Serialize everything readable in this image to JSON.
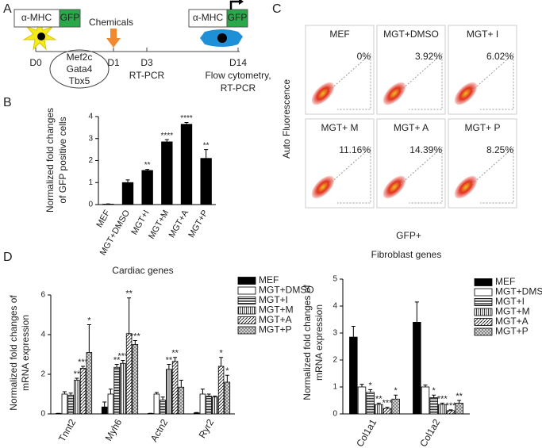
{
  "panel_a": {
    "label": "A",
    "left_promoter": "α-MHC",
    "left_reporter": "GFP",
    "treatment": "Chemicals",
    "right_promoter": "α-MHC",
    "right_reporter": "GFP",
    "days": [
      "D0",
      "D1",
      "D3",
      "D14"
    ],
    "factors": [
      "Mef2c",
      "Gata4",
      "Tbx5"
    ],
    "d3_assay": "RT-PCR",
    "d14_assay": [
      "Flow cytometry,",
      "RT-PCR"
    ]
  },
  "panel_c": {
    "label": "C",
    "y_label": "Auto Fluorescence",
    "x_label": "GFP+",
    "plots": [
      {
        "name": "MEF",
        "percent": "0%"
      },
      {
        "name": "MGT+DMSO",
        "percent": "3.92%"
      },
      {
        "name": "MGT+ I",
        "percent": "6.02%"
      },
      {
        "name": "MGT+ M",
        "percent": "11.16%"
      },
      {
        "name": "MGT+ A",
        "percent": "14.39%"
      },
      {
        "name": "MGT+ P",
        "percent": "8.25%"
      }
    ]
  },
  "chart_data": [
    {
      "type": "bar",
      "panel_label": "B",
      "y_label": [
        "Normalized fold changes",
        "of GFP positive cells"
      ],
      "categories": [
        "MEF",
        "MGT+DMSO",
        "MGT+I",
        "MGT+M",
        "MGT+A",
        "MGT+P"
      ],
      "series": [
        {
          "color": "#000000",
          "values": [
            0.02,
            1.0,
            1.55,
            2.85,
            3.65,
            2.1
          ],
          "errors": [
            0.01,
            0.12,
            0.05,
            0.1,
            0.08,
            0.4
          ],
          "annotations": [
            null,
            null,
            "**",
            "****",
            "****",
            "**"
          ]
        }
      ],
      "ylim": [
        0,
        4
      ],
      "yticks": [
        0,
        1,
        2,
        3,
        4
      ]
    },
    {
      "type": "bar",
      "panel_label": "D",
      "title": "Cardiac genes",
      "y_label": [
        "Normalized fold changes of",
        "mRNA expression"
      ],
      "categories": [
        "Tnnt2",
        "Myh6",
        "Actn2",
        "Ryr2"
      ],
      "legend": "right",
      "series": [
        {
          "name": "MEF",
          "color": "#000000",
          "values": [
            0.02,
            0.35,
            0.02,
            0.05
          ],
          "errors": [
            0.01,
            0.25,
            0.01,
            0.02
          ],
          "annotations": [
            null,
            null,
            null,
            null
          ]
        },
        {
          "name": "MGT+DMSO",
          "color": "#ffffff",
          "values": [
            1.0,
            1.0,
            1.0,
            1.0
          ],
          "errors": [
            0.12,
            0.25,
            0.08,
            0.25
          ],
          "annotations": [
            null,
            null,
            null,
            null
          ]
        },
        {
          "name": "MGT+I",
          "pattern": "hlines",
          "values": [
            0.95,
            2.35,
            0.7,
            0.9
          ],
          "errors": [
            0.1,
            0.15,
            0.15,
            0.1
          ],
          "annotations": [
            null,
            "**",
            null,
            null
          ]
        },
        {
          "name": "MGT+M",
          "pattern": "vlines",
          "values": [
            1.7,
            2.55,
            2.25,
            0.85
          ],
          "errors": [
            0.1,
            0.15,
            0.25,
            0.05
          ],
          "annotations": [
            "**",
            "***",
            "**",
            null
          ]
        },
        {
          "name": "MGT+A",
          "pattern": "diag",
          "values": [
            2.3,
            4.05,
            2.65,
            2.4
          ],
          "errors": [
            0.1,
            1.8,
            0.2,
            0.45
          ],
          "annotations": [
            "***",
            "**",
            "**",
            "*"
          ]
        },
        {
          "name": "MGT+P",
          "pattern": "cross",
          "values": [
            3.1,
            3.5,
            1.35,
            1.6
          ],
          "errors": [
            1.4,
            0.2,
            0.35,
            0.35
          ],
          "annotations": [
            "*",
            "***",
            null,
            "*"
          ]
        }
      ],
      "ylim": [
        0,
        6
      ],
      "yticks": [
        0,
        2,
        4,
        6
      ]
    },
    {
      "type": "bar",
      "title": "Fibroblast genes",
      "y_label": [
        "Normalized fold changes of",
        "mRNA expression"
      ],
      "categories": [
        "Col1a1",
        "Col1a2"
      ],
      "legend": "right",
      "series": [
        {
          "name": "MEF",
          "color": "#000000",
          "values": [
            2.85,
            3.4
          ],
          "errors": [
            0.4,
            0.75
          ],
          "annotations": [
            null,
            null
          ]
        },
        {
          "name": "MGT+DMSO",
          "color": "#ffffff",
          "values": [
            1.0,
            1.0
          ],
          "errors": [
            0.1,
            0.07
          ],
          "annotations": [
            null,
            null
          ]
        },
        {
          "name": "MGT+I",
          "pattern": "hlines",
          "values": [
            0.8,
            0.6
          ],
          "errors": [
            0.1,
            0.1
          ],
          "annotations": [
            "*",
            "*"
          ]
        },
        {
          "name": "MGT+M",
          "pattern": "vlines",
          "values": [
            0.35,
            0.35
          ],
          "errors": [
            0.05,
            0.05
          ],
          "annotations": [
            "**",
            "***"
          ]
        },
        {
          "name": "MGT+A",
          "pattern": "diag",
          "values": [
            0.2,
            0.12
          ],
          "errors": [
            0.05,
            0.03
          ],
          "annotations": [
            "***",
            "***"
          ]
        },
        {
          "name": "MGT+P",
          "pattern": "cross",
          "values": [
            0.55,
            0.4
          ],
          "errors": [
            0.15,
            0.1
          ],
          "annotations": [
            "*",
            "**"
          ]
        }
      ],
      "ylim": [
        0,
        5
      ],
      "yticks": [
        0,
        1,
        2,
        3,
        4,
        5
      ]
    }
  ]
}
